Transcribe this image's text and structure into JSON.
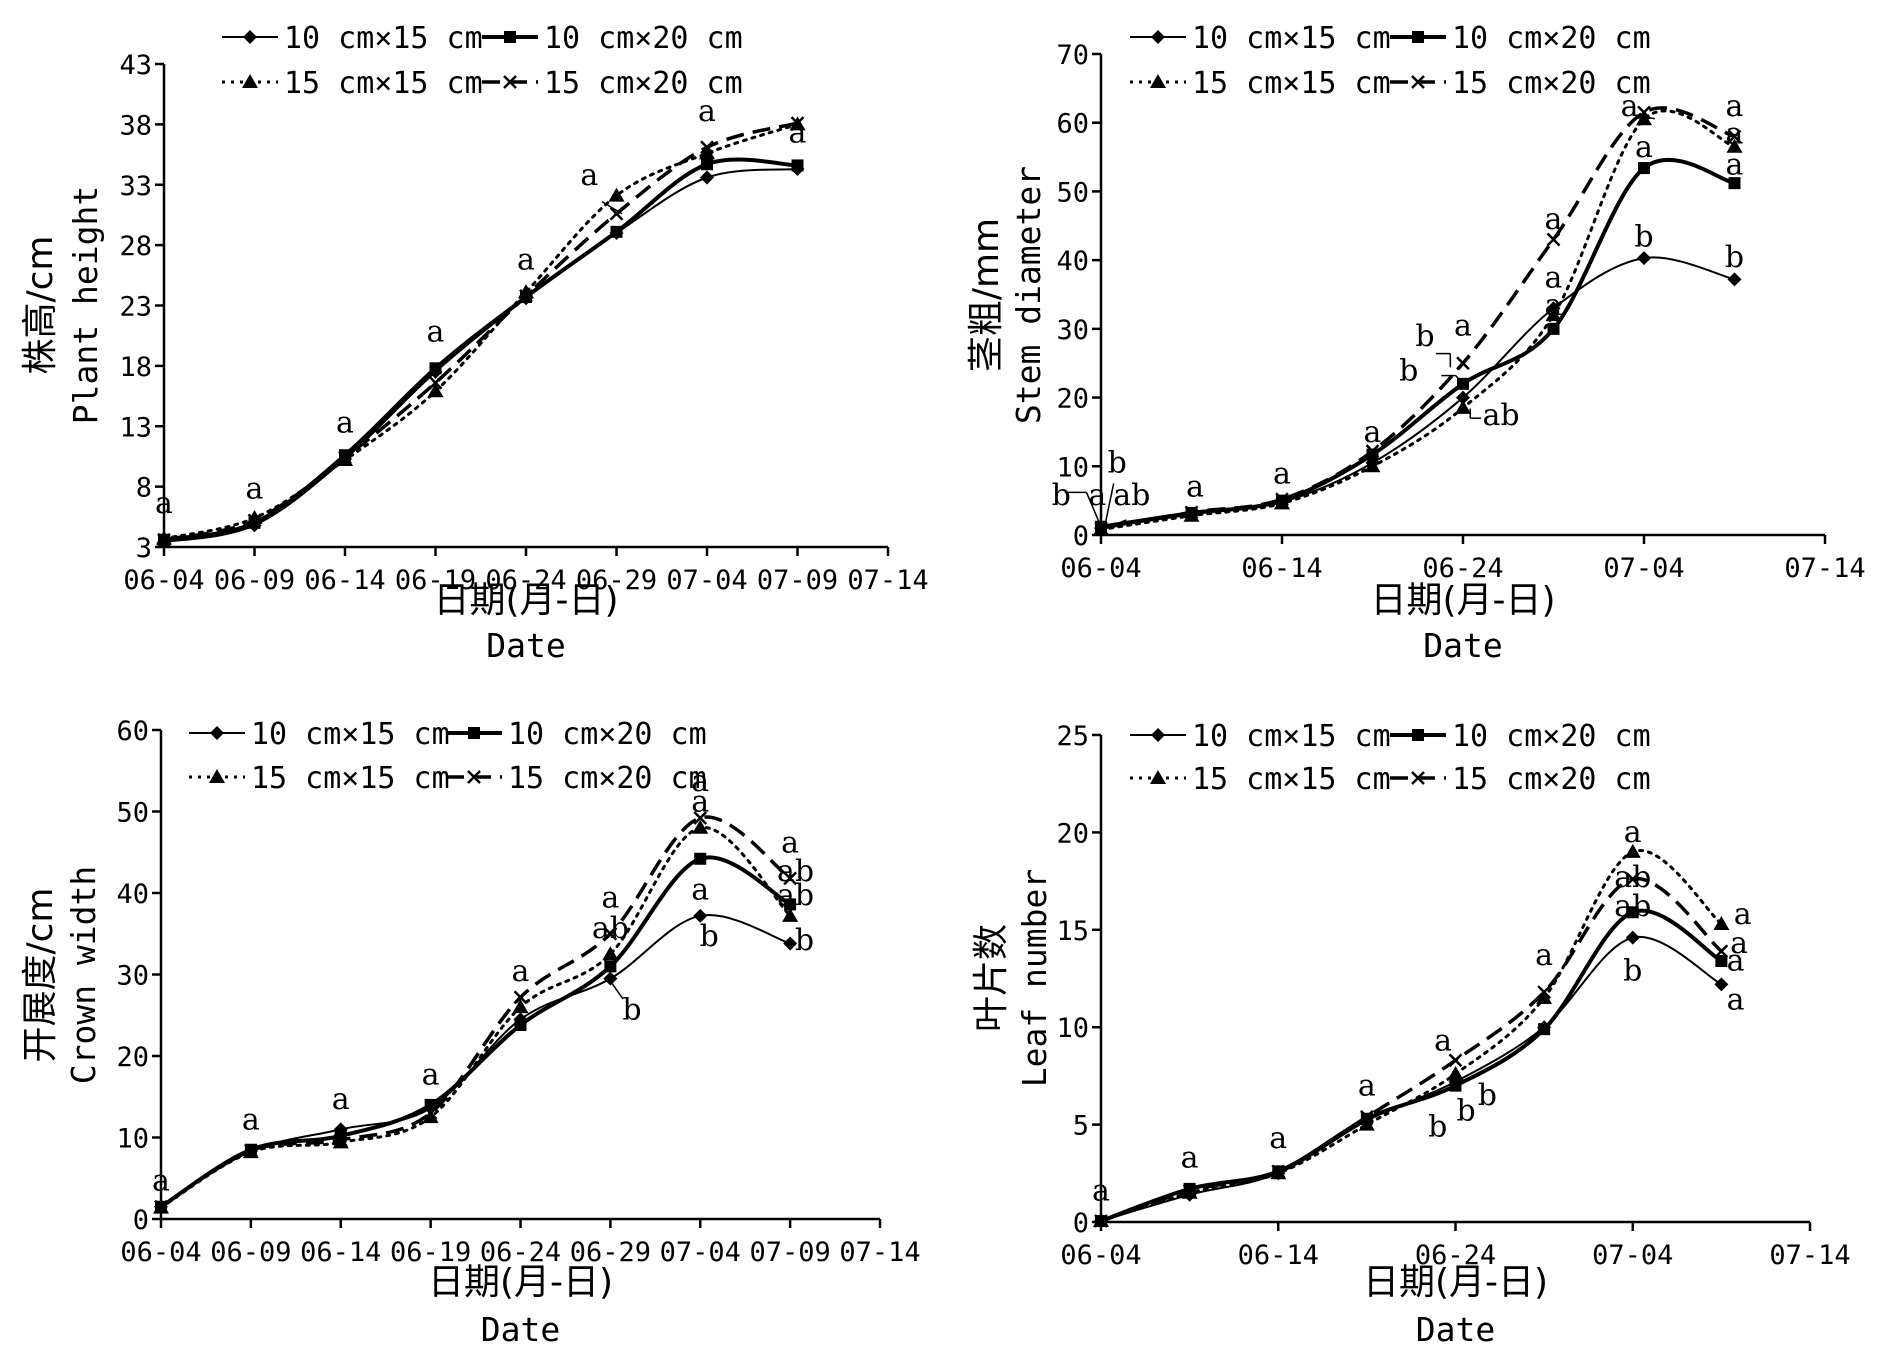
{
  "legend": [
    {
      "name": "10 cm×15 cm",
      "marker": "diamond",
      "dash": "solid",
      "width": 2
    },
    {
      "name": "10 cm×20 cm",
      "marker": "square",
      "dash": "solid",
      "width": 4
    },
    {
      "name": "15 cm×15 cm",
      "marker": "triangle",
      "dash": "dotted",
      "width": 3
    },
    {
      "name": "15 cm×20 cm",
      "marker": "x",
      "dash": "dashed",
      "width": 3.5
    }
  ],
  "chart_data": [
    {
      "type": "line",
      "ylabel_cn": "株高/cm",
      "ylabel_en": "Plant height",
      "xlabel_cn": "日期(月-日)",
      "xlabel_en": "Date",
      "xticks": [
        "06-04",
        "06-09",
        "06-14",
        "06-19",
        "06-24",
        "06-29",
        "07-04",
        "07-09",
        "07-14"
      ],
      "xlim": [
        0,
        40
      ],
      "ylim": [
        3,
        43
      ],
      "yticks": [
        3,
        8,
        13,
        18,
        23,
        28,
        33,
        38,
        43
      ],
      "grid": false,
      "legend_position": "top",
      "series": [
        {
          "name": "10 cm×15 cm",
          "x": [
            0,
            5,
            10,
            15,
            20,
            25,
            30,
            35
          ],
          "y": [
            3.4,
            4.8,
            10.3,
            17.5,
            23.6,
            29.0,
            33.6,
            34.3
          ]
        },
        {
          "name": "10 cm×20 cm",
          "x": [
            0,
            5,
            10,
            15,
            20,
            25,
            30,
            35
          ],
          "y": [
            3.6,
            5.0,
            10.6,
            17.8,
            23.7,
            29.1,
            34.7,
            34.6
          ]
        },
        {
          "name": "15 cm×15 cm",
          "x": [
            0,
            5,
            10,
            15,
            20,
            25,
            30,
            35
          ],
          "y": [
            3.7,
            5.4,
            10.2,
            15.9,
            24.1,
            32.1,
            35.6,
            38.0
          ]
        },
        {
          "name": "15 cm×20 cm",
          "x": [
            0,
            5,
            10,
            15,
            20,
            25,
            30,
            35
          ],
          "y": [
            3.6,
            5.2,
            10.4,
            16.6,
            23.8,
            30.6,
            36.1,
            38.1
          ]
        }
      ],
      "annotations": [
        {
          "text": "a",
          "x": 0,
          "y": 5.8
        },
        {
          "text": "a",
          "x": 5,
          "y": 7.0
        },
        {
          "text": "a",
          "x": 10,
          "y": 12.5
        },
        {
          "text": "a",
          "x": 15,
          "y": 20.0
        },
        {
          "text": "a",
          "x": 20,
          "y": 26.0
        },
        {
          "text": "a",
          "x": 23.5,
          "y": 33.0
        },
        {
          "text": "a",
          "x": 30,
          "y": 38.3
        },
        {
          "text": "a",
          "x": 35,
          "y": 36.5
        }
      ],
      "leader_lines": [
        {
          "x1": 24.2,
          "y1": 31.6,
          "x2": 25.3,
          "y2": 30.6
        }
      ]
    },
    {
      "type": "line",
      "ylabel_cn": "茎粗/mm",
      "ylabel_en": "Stem diameter",
      "xlabel_cn": "日期(月-日)",
      "xlabel_en": "Date",
      "xticks": [
        "06-04",
        "06-14",
        "06-24",
        "07-04",
        "07-14"
      ],
      "xlim": [
        0,
        40
      ],
      "ylim": [
        0,
        70
      ],
      "yticks": [
        0,
        10,
        20,
        30,
        40,
        50,
        60,
        70
      ],
      "grid": false,
      "legend_position": "top",
      "series": [
        {
          "name": "10 cm×15 cm",
          "x": [
            0,
            5,
            10,
            15,
            20,
            25,
            30,
            35
          ],
          "y": [
            1.0,
            3.0,
            4.8,
            10.5,
            20.0,
            33.0,
            40.3,
            37.2
          ]
        },
        {
          "name": "10 cm×20 cm",
          "x": [
            0,
            5,
            10,
            15,
            20,
            25,
            30,
            35
          ],
          "y": [
            1.2,
            3.2,
            5.0,
            11.7,
            22.0,
            30.0,
            53.4,
            51.2
          ]
        },
        {
          "name": "15 cm×15 cm",
          "x": [
            0,
            5,
            10,
            15,
            20,
            25,
            30,
            35
          ],
          "y": [
            0.8,
            2.8,
            4.6,
            10.0,
            18.5,
            32.0,
            60.5,
            56.5
          ]
        },
        {
          "name": "15 cm×20 cm",
          "x": [
            0,
            5,
            10,
            15,
            20,
            25,
            30,
            35
          ],
          "y": [
            1.0,
            3.3,
            5.2,
            12.2,
            25.0,
            43.0,
            61.5,
            58.0
          ]
        }
      ],
      "annotations": [
        {
          "text": "b",
          "x": -2.2,
          "y": 4.4
        },
        {
          "text": "a",
          "x": -0.2,
          "y": 4.4
        },
        {
          "text": "ab",
          "x": 1.7,
          "y": 4.4
        },
        {
          "text": "b",
          "x": 0.9,
          "y": 9.1
        },
        {
          "text": "a",
          "x": 5.2,
          "y": 5.6
        },
        {
          "text": "a",
          "x": 10,
          "y": 7.5
        },
        {
          "text": "a",
          "x": 15,
          "y": 13.5
        },
        {
          "text": "b",
          "x": 17.9,
          "y": 27.5
        },
        {
          "text": "b",
          "x": 17.0,
          "y": 22.5
        },
        {
          "text": "a",
          "x": 20,
          "y": 29.0
        },
        {
          "text": "ab",
          "x": 22.1,
          "y": 16.0
        },
        {
          "text": "a",
          "x": 25,
          "y": 44.5
        },
        {
          "text": "a",
          "x": 25,
          "y": 36.0
        },
        {
          "text": "a",
          "x": 25,
          "y": 32.0
        },
        {
          "text": "a",
          "x": 29.2,
          "y": 61.0
        },
        {
          "text": "a",
          "x": 30,
          "y": 55.0
        },
        {
          "text": "b",
          "x": 30,
          "y": 42.0
        },
        {
          "text": "a",
          "x": 35,
          "y": 61.0
        },
        {
          "text": "a",
          "x": 35,
          "y": 57.0
        },
        {
          "text": "a",
          "x": 35,
          "y": 52.5
        },
        {
          "text": "b",
          "x": 35,
          "y": 39.0
        }
      ],
      "leader_lines": [
        {
          "x1": -2.0,
          "y1": 6.2,
          "x2": -0.8,
          "y2": 6.2
        },
        {
          "x1": -0.8,
          "y1": 6.2,
          "x2": 0,
          "y2": 1.2
        },
        {
          "x1": 0.7,
          "y1": 7.5,
          "x2": 0.2,
          "y2": 1.2
        },
        {
          "x1": 1.4,
          "y1": 2.2,
          "x2": 0.3,
          "y2": 1.0
        },
        {
          "x1": 18.5,
          "y1": 26.4,
          "x2": 19.3,
          "y2": 26.4
        },
        {
          "x1": 19.3,
          "y1": 26.4,
          "x2": 19.3,
          "y2": 24.4
        },
        {
          "x1": 18.8,
          "y1": 23.2,
          "x2": 19.6,
          "y2": 23.2
        },
        {
          "x1": 19.6,
          "y1": 23.2,
          "x2": 19.9,
          "y2": 22.2
        },
        {
          "x1": 20.4,
          "y1": 18.4,
          "x2": 20.4,
          "y2": 17.0
        },
        {
          "x1": 20.4,
          "y1": 17.0,
          "x2": 21.0,
          "y2": 17.0
        },
        {
          "x1": 29.9,
          "y1": 60.8,
          "x2": 30.6,
          "y2": 60.6
        }
      ]
    },
    {
      "type": "line",
      "ylabel_cn": "开展度/cm",
      "ylabel_en": "Crown width",
      "xlabel_cn": "日期(月-日)",
      "xlabel_en": "Date",
      "xticks": [
        "06-04",
        "06-09",
        "06-14",
        "06-19",
        "06-24",
        "06-29",
        "07-04",
        "07-09",
        "07-14"
      ],
      "xlim": [
        0,
        40
      ],
      "ylim": [
        0,
        60
      ],
      "yticks": [
        0,
        10,
        20,
        30,
        40,
        50,
        60
      ],
      "grid": false,
      "legend_position": "top",
      "series": [
        {
          "name": "10 cm×15 cm",
          "x": [
            0,
            5,
            10,
            15,
            20,
            25,
            30,
            35
          ],
          "y": [
            1.5,
            8.3,
            11.0,
            13.6,
            24.5,
            29.5,
            37.2,
            33.8
          ]
        },
        {
          "name": "10 cm×20 cm",
          "x": [
            0,
            5,
            10,
            15,
            20,
            25,
            30,
            35
          ],
          "y": [
            1.5,
            8.5,
            10.2,
            14.0,
            23.8,
            31.0,
            44.2,
            38.6
          ]
        },
        {
          "name": "15 cm×15 cm",
          "x": [
            0,
            5,
            10,
            15,
            20,
            25,
            30,
            35
          ],
          "y": [
            1.4,
            8.2,
            9.4,
            12.5,
            26.0,
            32.5,
            48.0,
            37.2
          ]
        },
        {
          "name": "15 cm×20 cm",
          "x": [
            0,
            5,
            10,
            15,
            20,
            25,
            30,
            35
          ],
          "y": [
            1.5,
            8.4,
            9.7,
            13.0,
            27.2,
            35.0,
            49.2,
            41.8
          ]
        }
      ],
      "annotations": [
        {
          "text": "a",
          "x": 0,
          "y": 3.5
        },
        {
          "text": "a",
          "x": 5,
          "y": 11.0
        },
        {
          "text": "a",
          "x": 10,
          "y": 13.5
        },
        {
          "text": "a",
          "x": 15,
          "y": 16.5
        },
        {
          "text": "a",
          "x": 20,
          "y": 29.2
        },
        {
          "text": "a",
          "x": 25,
          "y": 38.2
        },
        {
          "text": "ab",
          "x": 25,
          "y": 34.5
        },
        {
          "text": "b",
          "x": 26.2,
          "y": 24.5
        },
        {
          "text": "a",
          "x": 30,
          "y": 52.5
        },
        {
          "text": "a",
          "x": 30,
          "y": 50.0
        },
        {
          "text": "a",
          "x": 30,
          "y": 39.2
        },
        {
          "text": "b",
          "x": 30.5,
          "y": 33.5
        },
        {
          "text": "a",
          "x": 35,
          "y": 45.0
        },
        {
          "text": "ab",
          "x": 35.3,
          "y": 41.5
        },
        {
          "text": "ab",
          "x": 35.3,
          "y": 38.5
        },
        {
          "text": "b",
          "x": 35.8,
          "y": 33.0
        }
      ],
      "leader_lines": [
        {
          "x1": 25.7,
          "y1": 27.0,
          "x2": 25.0,
          "y2": 29.2
        }
      ]
    },
    {
      "type": "line",
      "ylabel_cn": "叶片数",
      "ylabel_en": "Leaf number",
      "xlabel_cn": "日期(月-日)",
      "xlabel_en": "Date",
      "xticks": [
        "06-04",
        "06-14",
        "06-24",
        "07-04",
        "07-14"
      ],
      "xlim": [
        0,
        40
      ],
      "ylim": [
        0,
        25
      ],
      "yticks": [
        0,
        5,
        10,
        15,
        20,
        25
      ],
      "grid": false,
      "legend_position": "top",
      "series": [
        {
          "name": "10 cm×15 cm",
          "x": [
            0,
            5,
            10,
            15,
            20,
            25,
            30,
            35
          ],
          "y": [
            0.05,
            1.4,
            2.5,
            5.2,
            7.2,
            10.0,
            14.6,
            12.2
          ]
        },
        {
          "name": "10 cm×20 cm",
          "x": [
            0,
            5,
            10,
            15,
            20,
            25,
            30,
            35
          ],
          "y": [
            0.05,
            1.7,
            2.6,
            5.3,
            7.0,
            9.9,
            15.9,
            13.4
          ]
        },
        {
          "name": "15 cm×15 cm",
          "x": [
            0,
            5,
            10,
            15,
            20,
            25,
            30,
            35
          ],
          "y": [
            0.05,
            1.5,
            2.5,
            5.0,
            7.6,
            11.5,
            19.0,
            15.3
          ]
        },
        {
          "name": "15 cm×20 cm",
          "x": [
            0,
            5,
            10,
            15,
            20,
            25,
            30,
            35
          ],
          "y": [
            0.05,
            1.6,
            2.6,
            5.4,
            8.3,
            11.8,
            17.6,
            13.9
          ]
        }
      ],
      "annotations": [
        {
          "text": "a",
          "x": 0,
          "y": 1.1
        },
        {
          "text": "a",
          "x": 5,
          "y": 2.8
        },
        {
          "text": "a",
          "x": 10,
          "y": 3.8
        },
        {
          "text": "a",
          "x": 15,
          "y": 6.5
        },
        {
          "text": "a",
          "x": 19.3,
          "y": 8.8
        },
        {
          "text": "b",
          "x": 19.0,
          "y": 4.4
        },
        {
          "text": "b",
          "x": 20.6,
          "y": 5.2
        },
        {
          "text": "b",
          "x": 21.8,
          "y": 6.0
        },
        {
          "text": "a",
          "x": 25,
          "y": 13.2
        },
        {
          "text": "a",
          "x": 30,
          "y": 19.5
        },
        {
          "text": "ab",
          "x": 30,
          "y": 17.2
        },
        {
          "text": "ab",
          "x": 30,
          "y": 15.7
        },
        {
          "text": "b",
          "x": 30,
          "y": 12.4
        },
        {
          "text": "a",
          "x": 36.2,
          "y": 15.3
        },
        {
          "text": "a",
          "x": 36.0,
          "y": 13.8
        },
        {
          "text": "a",
          "x": 35.8,
          "y": 12.9
        },
        {
          "text": "a",
          "x": 35.8,
          "y": 10.9
        }
      ],
      "leader_lines": []
    }
  ]
}
